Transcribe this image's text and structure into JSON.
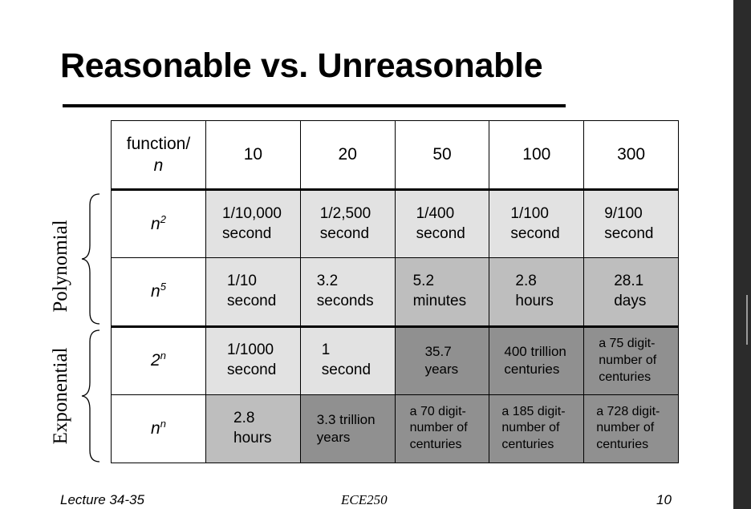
{
  "slide": {
    "title": "Reasonable vs. Unreasonable",
    "footer_left": "Lecture 34-35",
    "footer_center": "ECE250",
    "footer_right": "10"
  },
  "groups": {
    "polynomial": "Polynomial",
    "exponential": "Exponential"
  },
  "table": {
    "header_label_line1": "function/",
    "header_label_line2": "n",
    "columns": [
      "10",
      "20",
      "50",
      "100",
      "300"
    ],
    "rows": [
      {
        "base": "n",
        "exp": "2",
        "cells": [
          {
            "l1": "1/10,000",
            "l2": "second"
          },
          {
            "l1": "1/2,500",
            "l2": "second"
          },
          {
            "l1": "1/400",
            "l2": "second"
          },
          {
            "l1": "1/100",
            "l2": "second"
          },
          {
            "l1": "9/100",
            "l2": "second"
          }
        ]
      },
      {
        "base": "n",
        "exp": "5",
        "cells": [
          {
            "l1": "1/10",
            "l2": "second"
          },
          {
            "l1": "3.2",
            "l2": "seconds"
          },
          {
            "l1": "5.2",
            "l2": "minutes"
          },
          {
            "l1": "2.8",
            "l2": "hours"
          },
          {
            "l1": "28.1",
            "l2": "days"
          }
        ]
      },
      {
        "base": "2",
        "exp": "n",
        "cells": [
          {
            "l1": "1/1000",
            "l2": "second"
          },
          {
            "l1": "1",
            "l2": "second"
          },
          {
            "l1": "35.7",
            "l2": "years"
          },
          {
            "l1": "400 trillion",
            "l2": "centuries"
          },
          {
            "l1": "a 75 digit-",
            "l2": "number of",
            "l3": "centuries"
          }
        ]
      },
      {
        "base": "n",
        "exp": "n",
        "cells": [
          {
            "l1": "2.8",
            "l2": "hours"
          },
          {
            "l1": "3.3 trillion",
            "l2": "years"
          },
          {
            "l1": "a 70 digit-",
            "l2": "number of",
            "l3": "centuries"
          },
          {
            "l1": "a 185 digit-",
            "l2": "number of",
            "l3": "centuries"
          },
          {
            "l1": "a 728 digit-",
            "l2": "number of",
            "l3": "centuries"
          }
        ]
      }
    ]
  },
  "colors": {
    "light": "#e2e2e2",
    "mid": "#bebebe",
    "dark": "#909090"
  }
}
